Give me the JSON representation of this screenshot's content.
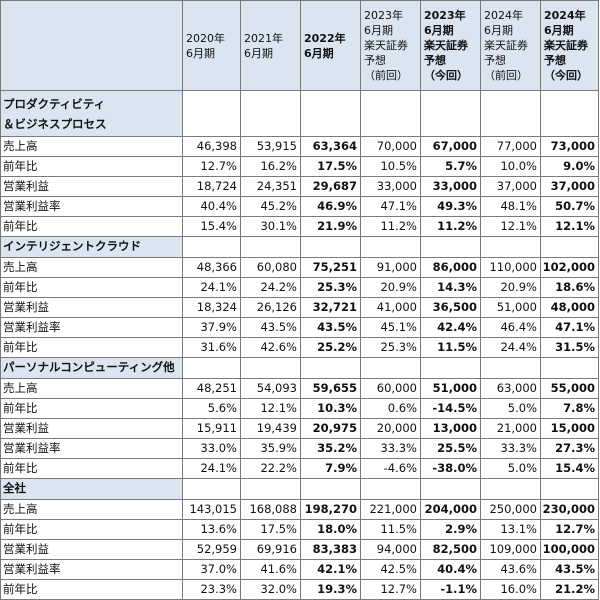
{
  "header": {
    "columns": [
      {
        "lines": [
          "2020年",
          "6月期"
        ],
        "bold": false
      },
      {
        "lines": [
          "2021年",
          "6月期"
        ],
        "bold": false
      },
      {
        "lines": [
          "2022年",
          "6月期"
        ],
        "bold": true
      },
      {
        "lines": [
          "2023年",
          "6月期",
          "楽天証券",
          "予想",
          "（前回）"
        ],
        "bold": false
      },
      {
        "lines": [
          "2023年",
          "6月期",
          "楽天証券",
          "予想",
          "（今回）"
        ],
        "bold": true
      },
      {
        "lines": [
          "2024年",
          "6月期",
          "楽天証券",
          "予想",
          "（前回）"
        ],
        "bold": false
      },
      {
        "lines": [
          "2024年",
          "6月期",
          "楽天証券",
          "予想",
          "（今回）"
        ],
        "bold": true
      }
    ]
  },
  "sections": [
    {
      "title_lines": [
        "プロダクティビティ",
        "＆ビジネスプロセス"
      ],
      "rows": [
        {
          "label": "売上高",
          "values": [
            "46,398",
            "53,915",
            "63,364",
            "70,000",
            "67,000",
            "77,000",
            "73,000"
          ]
        },
        {
          "label": "前年比",
          "values": [
            "12.7%",
            "16.2%",
            "17.5%",
            "10.5%",
            "5.7%",
            "10.0%",
            "9.0%"
          ]
        },
        {
          "label": "営業利益",
          "values": [
            "18,724",
            "24,351",
            "29,687",
            "33,000",
            "33,000",
            "37,000",
            "37,000"
          ]
        },
        {
          "label": "営業利益率",
          "values": [
            "40.4%",
            "45.2%",
            "46.9%",
            "47.1%",
            "49.3%",
            "48.1%",
            "50.7%"
          ]
        },
        {
          "label": "前年比",
          "values": [
            "15.4%",
            "30.1%",
            "21.9%",
            "11.2%",
            "11.2%",
            "12.1%",
            "12.1%"
          ]
        }
      ]
    },
    {
      "title_lines": [
        "インテリジェントクラウド"
      ],
      "rows": [
        {
          "label": "売上高",
          "values": [
            "48,366",
            "60,080",
            "75,251",
            "91,000",
            "86,000",
            "110,000",
            "102,000"
          ]
        },
        {
          "label": "前年比",
          "values": [
            "24.1%",
            "24.2%",
            "25.3%",
            "20.9%",
            "14.3%",
            "20.9%",
            "18.6%"
          ]
        },
        {
          "label": "営業利益",
          "values": [
            "18,324",
            "26,126",
            "32,721",
            "41,000",
            "36,500",
            "51,000",
            "48,000"
          ]
        },
        {
          "label": "営業利益率",
          "values": [
            "37.9%",
            "43.5%",
            "43.5%",
            "45.1%",
            "42.4%",
            "46.4%",
            "47.1%"
          ]
        },
        {
          "label": "前年比",
          "values": [
            "31.6%",
            "42.6%",
            "25.2%",
            "25.3%",
            "11.5%",
            "24.4%",
            "31.5%"
          ]
        }
      ]
    },
    {
      "title_lines": [
        "パーソナルコンピューティング他"
      ],
      "rows": [
        {
          "label": "売上高",
          "values": [
            "48,251",
            "54,093",
            "59,655",
            "60,000",
            "51,000",
            "63,000",
            "55,000"
          ]
        },
        {
          "label": "前年比",
          "values": [
            "5.6%",
            "12.1%",
            "10.3%",
            "0.6%",
            "-14.5%",
            "5.0%",
            "7.8%"
          ]
        },
        {
          "label": "営業利益",
          "values": [
            "15,911",
            "19,439",
            "20,975",
            "20,000",
            "13,000",
            "21,000",
            "15,000"
          ]
        },
        {
          "label": "営業利益率",
          "values": [
            "33.0%",
            "35.9%",
            "35.2%",
            "33.3%",
            "25.5%",
            "33.3%",
            "27.3%"
          ]
        },
        {
          "label": "前年比",
          "values": [
            "24.1%",
            "22.2%",
            "7.9%",
            "-4.6%",
            "-38.0%",
            "5.0%",
            "15.4%"
          ]
        }
      ]
    },
    {
      "title_lines": [
        "全社"
      ],
      "rows": [
        {
          "label": "売上高",
          "values": [
            "143,015",
            "168,088",
            "198,270",
            "221,000",
            "204,000",
            "250,000",
            "230,000"
          ]
        },
        {
          "label": "前年比",
          "values": [
            "13.6%",
            "17.5%",
            "18.0%",
            "11.5%",
            "2.9%",
            "13.1%",
            "12.7%"
          ]
        },
        {
          "label": "営業利益",
          "values": [
            "52,959",
            "69,916",
            "83,383",
            "94,000",
            "82,500",
            "109,000",
            "100,000"
          ]
        },
        {
          "label": "営業利益率",
          "values": [
            "37.0%",
            "41.6%",
            "42.1%",
            "42.5%",
            "40.4%",
            "43.6%",
            "43.5%"
          ]
        },
        {
          "label": "前年比",
          "values": [
            "23.3%",
            "32.0%",
            "19.3%",
            "12.7%",
            "-1.1%",
            "16.0%",
            "21.2%"
          ]
        }
      ]
    }
  ],
  "bold_column_indices": [
    2,
    4,
    6
  ],
  "colors": {
    "header_bg": "#dbe4f1",
    "border": "#7a7a7a"
  }
}
